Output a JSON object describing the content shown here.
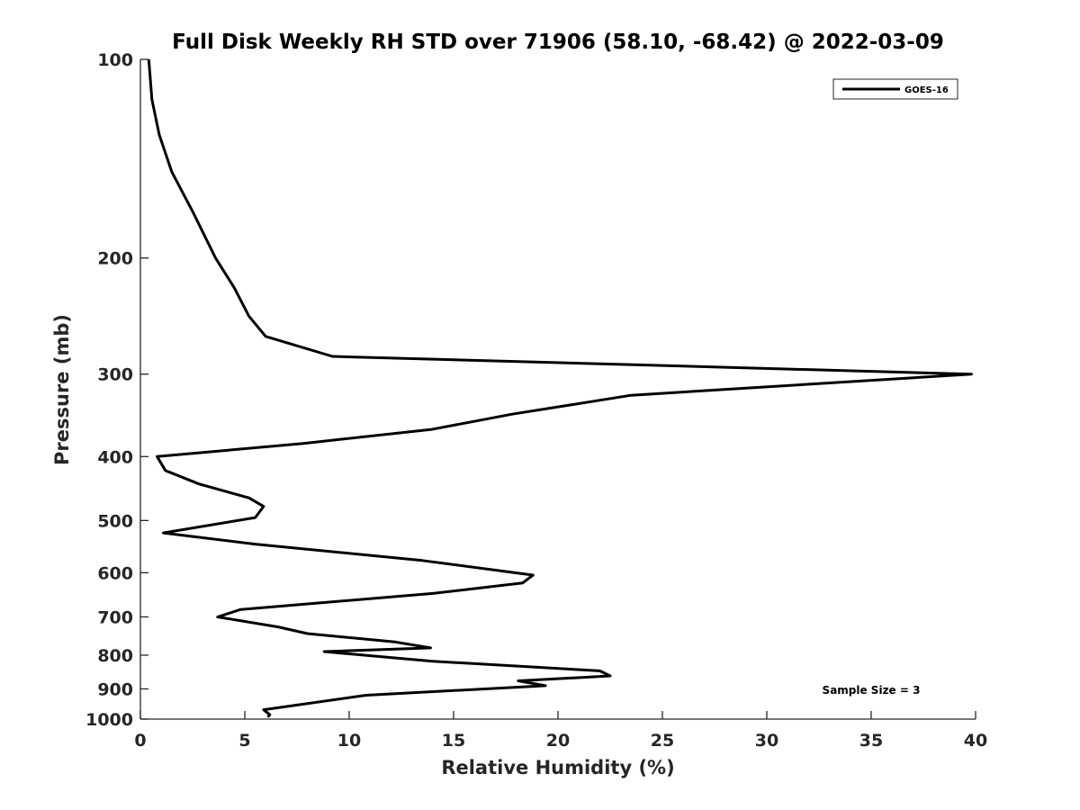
{
  "chart_data": {
    "type": "line",
    "title": "Full Disk Weekly RH STD over 71906 (58.10, -68.42) @ 2022-03-09",
    "xlabel": "Relative Humidity (%)",
    "ylabel": "Pressure (mb)",
    "xlim": [
      0,
      40
    ],
    "ylim": [
      100,
      1000
    ],
    "yscale": "log",
    "yreversed": true,
    "xticks": [
      0,
      5,
      10,
      15,
      20,
      25,
      30,
      35,
      40
    ],
    "yticks": [
      100,
      200,
      300,
      400,
      500,
      600,
      700,
      800,
      900,
      1000
    ],
    "grid": false,
    "legend": {
      "placement": "top-right",
      "entries": [
        "GOES-16"
      ]
    },
    "annotation": "Sample Size = 3",
    "series": [
      {
        "name": "GOES-16",
        "color": "#000000",
        "x": [
          0.4,
          0.55,
          0.9,
          1.5,
          2.5,
          3.6,
          4.5,
          5.2,
          6.0,
          9.2,
          39.8,
          23.5,
          17.8,
          13.9,
          7.8,
          0.8,
          1.2,
          2.8,
          5.2,
          5.9,
          5.5,
          1.1,
          5.5,
          13.5,
          18.8,
          18.3,
          14.0,
          4.8,
          3.7,
          6.6,
          8.0,
          12.2,
          13.9,
          8.8,
          14.0,
          22.0,
          22.5,
          18.1,
          19.4,
          10.8,
          5.9,
          6.2,
          6.1
        ],
        "y": [
          100,
          115,
          130,
          148,
          170,
          200,
          222,
          245,
          263,
          282,
          300,
          323,
          345,
          364,
          382,
          400,
          420,
          440,
          462,
          476,
          495,
          522,
          543,
          575,
          605,
          622,
          645,
          682,
          700,
          725,
          742,
          764,
          780,
          790,
          817,
          845,
          860,
          875,
          890,
          920,
          968,
          985,
          993
        ]
      }
    ]
  }
}
